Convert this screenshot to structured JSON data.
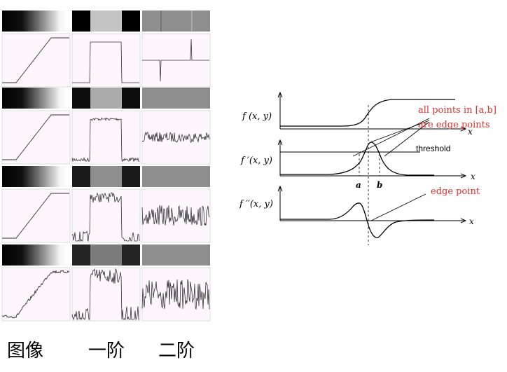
{
  "grid": {
    "columns": [
      "图像",
      "一阶",
      "二阶"
    ],
    "rows": [
      {
        "noise": "none"
      },
      {
        "noise": "low"
      },
      {
        "noise": "medium"
      },
      {
        "noise": "high"
      }
    ]
  },
  "curves": {
    "rows": [
      {
        "label": "f (x, y)"
      },
      {
        "label": "f ′(x, y)"
      },
      {
        "label": "f ′′(x, y)"
      }
    ],
    "axis_label": "x",
    "threshold_label": "threshold",
    "a_label": "a",
    "b_label": "b",
    "annotation_edges_line1": "all points in [a,b]",
    "annotation_edges_line2": "are edge points",
    "annotation_edge_point": "edge point",
    "annotation_color": "#e0302a"
  }
}
